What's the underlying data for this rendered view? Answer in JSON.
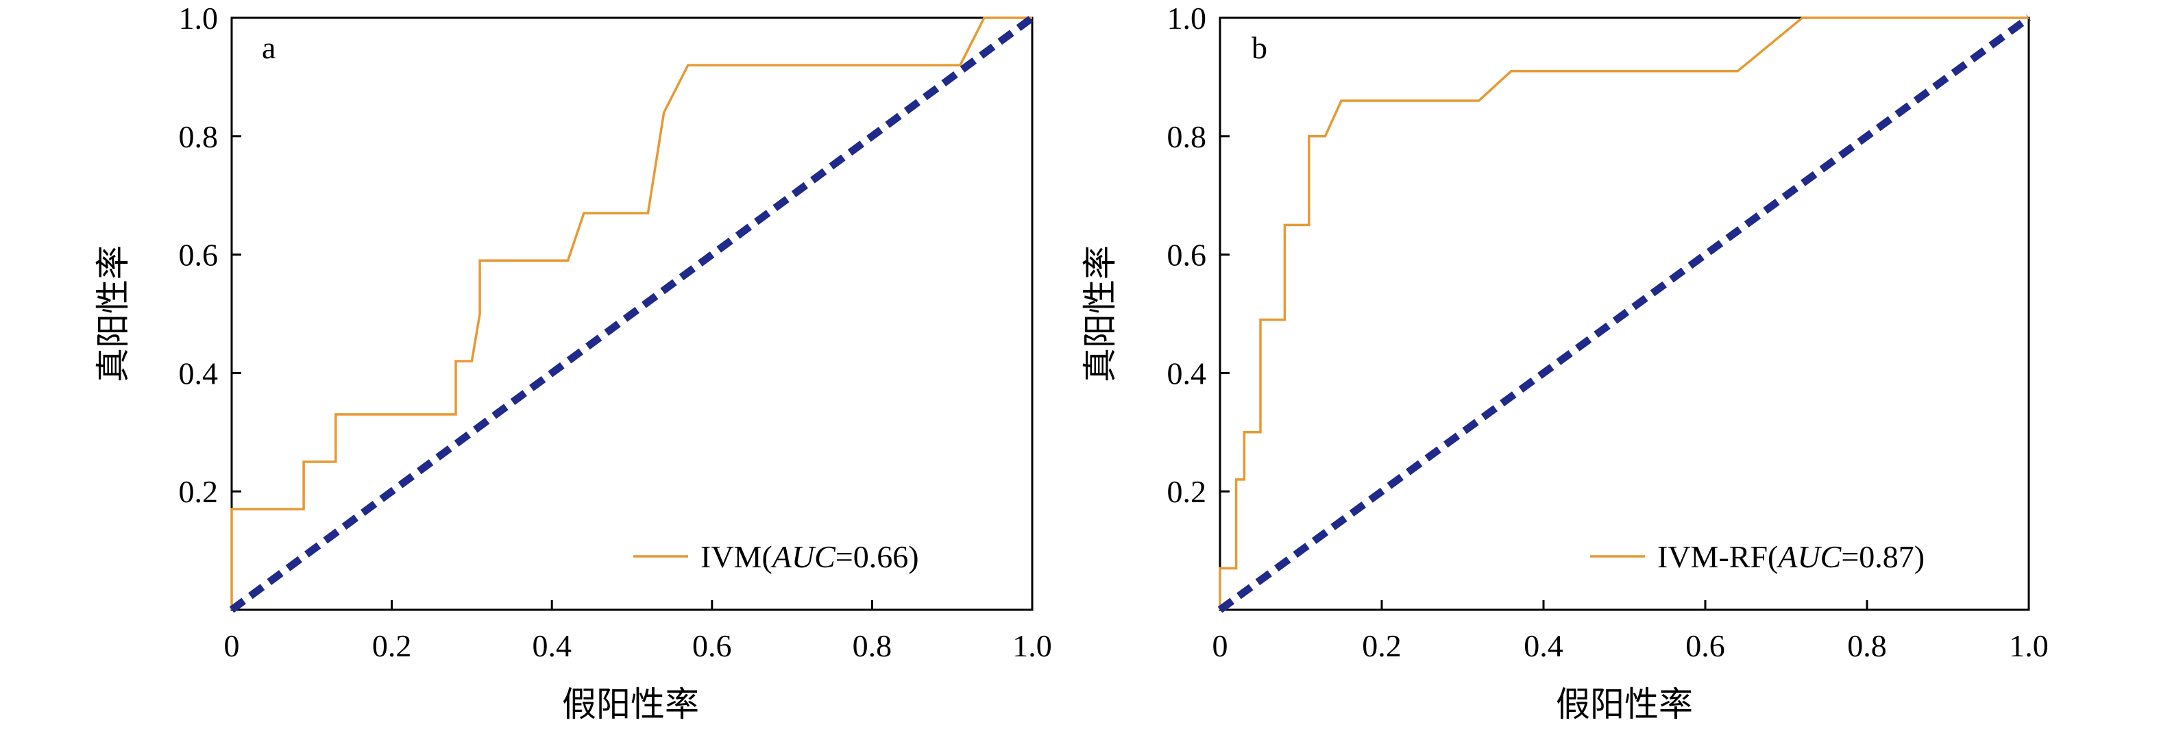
{
  "chart_data": [
    {
      "type": "line",
      "panel_label": "a",
      "xlabel": "假阳性率",
      "ylabel": "真阳性率",
      "xlim": [
        0,
        1.0
      ],
      "ylim": [
        0,
        1.0
      ],
      "x_ticks": [
        "0",
        "0.2",
        "0.4",
        "0.6",
        "0.8",
        "1.0"
      ],
      "y_ticks": [
        "0.2",
        "0.4",
        "0.6",
        "0.8",
        "1.0"
      ],
      "grid": false,
      "legend_position": "bottom-right",
      "legend": {
        "prefix": "IVM(",
        "metric": "AUC",
        "suffix": "=0.66)"
      },
      "series": [
        {
          "name": "IVM(AUC=0.66)",
          "color": "#E69A33",
          "x": [
            0.0,
            0.0,
            0.09,
            0.09,
            0.13,
            0.13,
            0.28,
            0.28,
            0.3,
            0.31,
            0.31,
            0.42,
            0.44,
            0.52,
            0.54,
            0.57,
            0.91,
            0.94,
            1.0
          ],
          "y": [
            0.0,
            0.17,
            0.17,
            0.25,
            0.25,
            0.33,
            0.33,
            0.42,
            0.42,
            0.5,
            0.59,
            0.59,
            0.67,
            0.67,
            0.84,
            0.92,
            0.92,
            1.0,
            1.0
          ]
        },
        {
          "name": "",
          "color": "#1F2A8A",
          "style": "dashed",
          "x": [
            0.0,
            1.0
          ],
          "y": [
            0.0,
            1.0
          ]
        }
      ]
    },
    {
      "type": "line",
      "panel_label": "b",
      "xlabel": "假阳性率",
      "ylabel": "真阳性率",
      "xlim": [
        0,
        1.0
      ],
      "ylim": [
        0,
        1.0
      ],
      "x_ticks": [
        "0",
        "0.2",
        "0.4",
        "0.6",
        "0.8",
        "1.0"
      ],
      "y_ticks": [
        "0.2",
        "0.4",
        "0.6",
        "0.8",
        "1.0"
      ],
      "grid": false,
      "legend_position": "bottom-right",
      "legend": {
        "prefix": "IVM-RF(",
        "metric": "AUC",
        "suffix": "=0.87)"
      },
      "series": [
        {
          "name": "IVM-RF(AUC=0.87)",
          "color": "#E69A33",
          "x": [
            0.0,
            0.0,
            0.02,
            0.02,
            0.03,
            0.03,
            0.05,
            0.05,
            0.08,
            0.08,
            0.11,
            0.11,
            0.13,
            0.15,
            0.32,
            0.36,
            0.64,
            0.72,
            1.0
          ],
          "y": [
            0.0,
            0.07,
            0.07,
            0.22,
            0.22,
            0.3,
            0.3,
            0.49,
            0.49,
            0.65,
            0.65,
            0.8,
            0.8,
            0.86,
            0.86,
            0.91,
            0.91,
            1.0,
            1.0
          ]
        },
        {
          "name": "",
          "color": "#1F2A8A",
          "style": "dashed",
          "x": [
            0.0,
            1.0
          ],
          "y": [
            0.0,
            1.0
          ]
        }
      ]
    }
  ]
}
